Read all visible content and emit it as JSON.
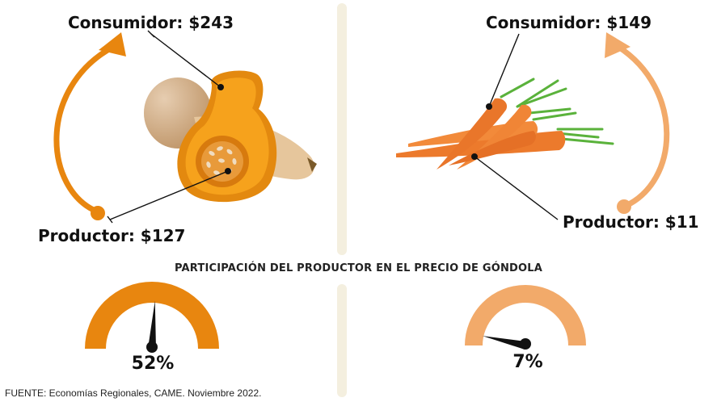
{
  "left_product": {
    "name": "butternut-squash",
    "consumer_label": "Consumidor: $243",
    "producer_label": "Productor: $127",
    "color": "#e8860f"
  },
  "right_product": {
    "name": "carrot",
    "consumer_label": "Consumidor: $149",
    "producer_label": "Productor: $11",
    "color": "#f2aa6a"
  },
  "heading": "PARTICIPACIÓN DEL PRODUCTOR EN EL PRECIO DE GÓNDOLA",
  "gauges": [
    {
      "value": 52,
      "label": "52%",
      "color": "#e8860f"
    },
    {
      "value": 7,
      "label": "7%",
      "color": "#f2aa6a"
    }
  ],
  "source": "FUENTE: Economías Regionales, CAME. Noviembre 2022."
}
